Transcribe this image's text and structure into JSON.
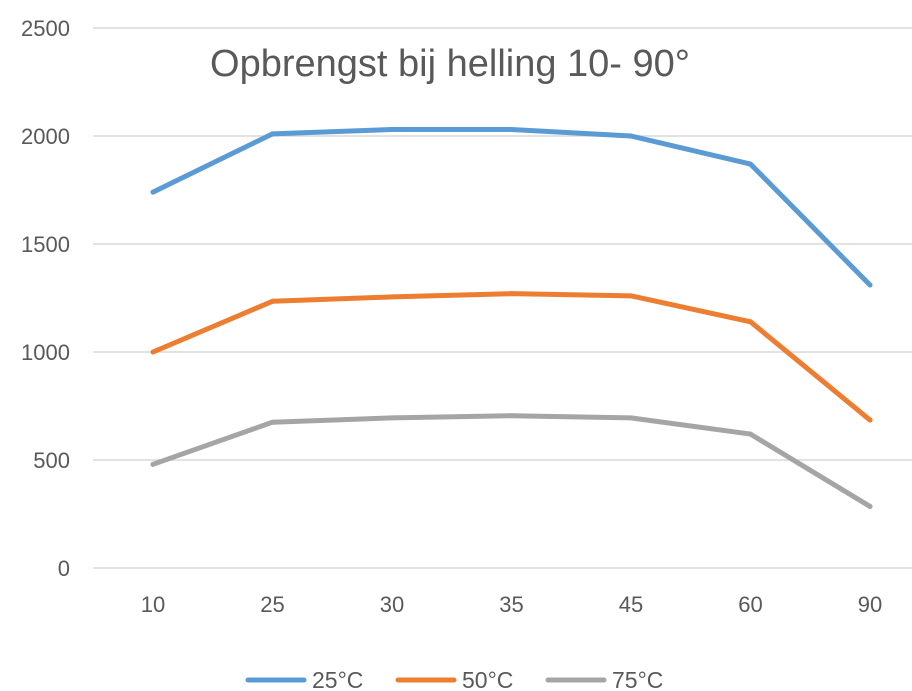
{
  "chart_data": {
    "type": "line",
    "title": "Opbrengst bij helling 10- 90°",
    "xlabel": "",
    "ylabel": "",
    "categories": [
      "10",
      "25",
      "30",
      "35",
      "45",
      "60",
      "90"
    ],
    "ylim": [
      0,
      2500
    ],
    "yticks": [
      "0",
      "500",
      "1000",
      "1500",
      "2000",
      "2500"
    ],
    "grid": true,
    "legend_position": "bottom",
    "series": [
      {
        "name": "25°C",
        "color": "#5B9BD5",
        "values": [
          1740,
          2010,
          2030,
          2030,
          2000,
          1870,
          1310
        ]
      },
      {
        "name": "50°C",
        "color": "#ED7D31",
        "values": [
          1000,
          1235,
          1255,
          1270,
          1260,
          1140,
          685
        ]
      },
      {
        "name": "75°C",
        "color": "#A5A5A5",
        "values": [
          480,
          675,
          695,
          705,
          695,
          620,
          285
        ]
      }
    ]
  }
}
